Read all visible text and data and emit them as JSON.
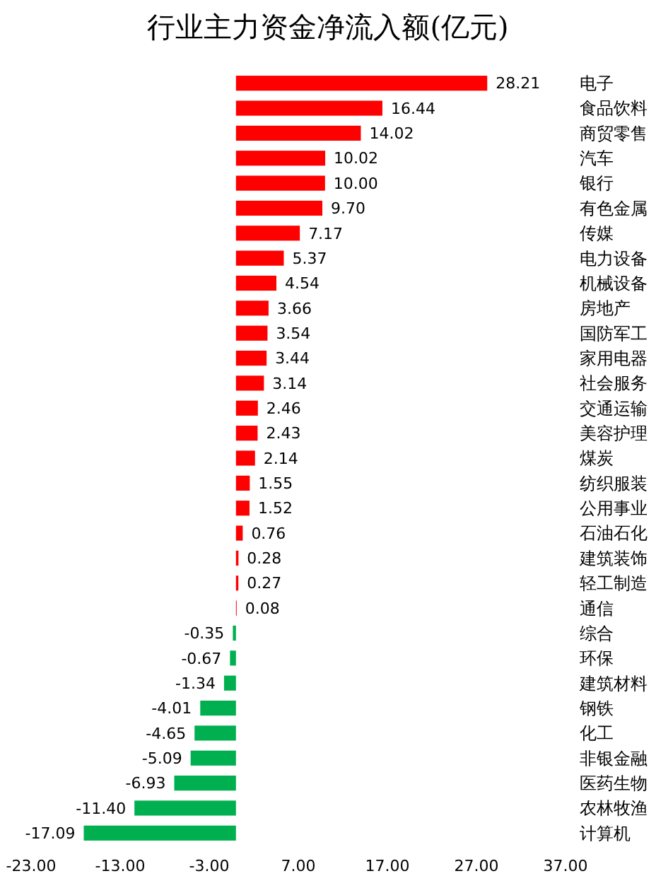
{
  "chart_data": {
    "type": "bar",
    "orientation": "horizontal",
    "title": "行业主力资金净流入额(亿元)",
    "categories": [
      "电子",
      "食品饮料",
      "商贸零售",
      "汽车",
      "银行",
      "有色金属",
      "传媒",
      "电力设备",
      "机械设备",
      "房地产",
      "国防军工",
      "家用电器",
      "社会服务",
      "交通运输",
      "美容护理",
      "煤炭",
      "纺织服装",
      "公用事业",
      "石油石化",
      "建筑装饰",
      "轻工制造",
      "通信",
      "综合",
      "环保",
      "建筑材料",
      "钢铁",
      "化工",
      "非银金融",
      "医药生物",
      "农林牧渔",
      "计算机"
    ],
    "values": [
      28.21,
      16.44,
      14.02,
      10.02,
      10.0,
      9.7,
      7.17,
      5.37,
      4.54,
      3.66,
      3.54,
      3.44,
      3.14,
      2.46,
      2.43,
      2.14,
      1.55,
      1.52,
      0.76,
      0.28,
      0.27,
      0.08,
      -0.35,
      -0.67,
      -1.34,
      -4.01,
      -4.65,
      -5.09,
      -6.93,
      -11.4,
      -17.09
    ],
    "value_labels": [
      "28.21",
      "16.44",
      "14.02",
      "10.02",
      "10.00",
      "9.70",
      "7.17",
      "5.37",
      "4.54",
      "3.66",
      "3.54",
      "3.44",
      "3.14",
      "2.46",
      "2.43",
      "2.14",
      "1.55",
      "1.52",
      "0.76",
      "0.28",
      "0.27",
      "0.08",
      "-0.35",
      "-0.67",
      "-1.34",
      "-4.01",
      "-4.65",
      "-5.09",
      "-6.93",
      "-11.40",
      "-17.09"
    ],
    "colors": [
      "#ff0000",
      "#ff0000",
      "#ff0000",
      "#ff0000",
      "#ff0000",
      "#ff0000",
      "#ff0000",
      "#ff0000",
      "#ff0000",
      "#ff0000",
      "#ff0000",
      "#ff0000",
      "#ff0000",
      "#ff0000",
      "#ff0000",
      "#ff0000",
      "#ff0000",
      "#ff0000",
      "#ff0000",
      "#ff0000",
      "#ff0000",
      "#ff0000",
      "#00b050",
      "#00b050",
      "#00b050",
      "#00b050",
      "#00b050",
      "#00b050",
      "#00b050",
      "#00b050",
      "#00b050"
    ],
    "xlim": [
      -23,
      37
    ],
    "xticks": [
      {
        "value": -23,
        "label": "-23.00"
      },
      {
        "value": -13,
        "label": "-13.00"
      },
      {
        "value": -3,
        "label": "-3.00"
      },
      {
        "value": 7,
        "label": "7.00"
      },
      {
        "value": 17,
        "label": "17.00"
      },
      {
        "value": 27,
        "label": "27.00"
      },
      {
        "value": 37,
        "label": "37.00"
      }
    ],
    "grid": false
  }
}
